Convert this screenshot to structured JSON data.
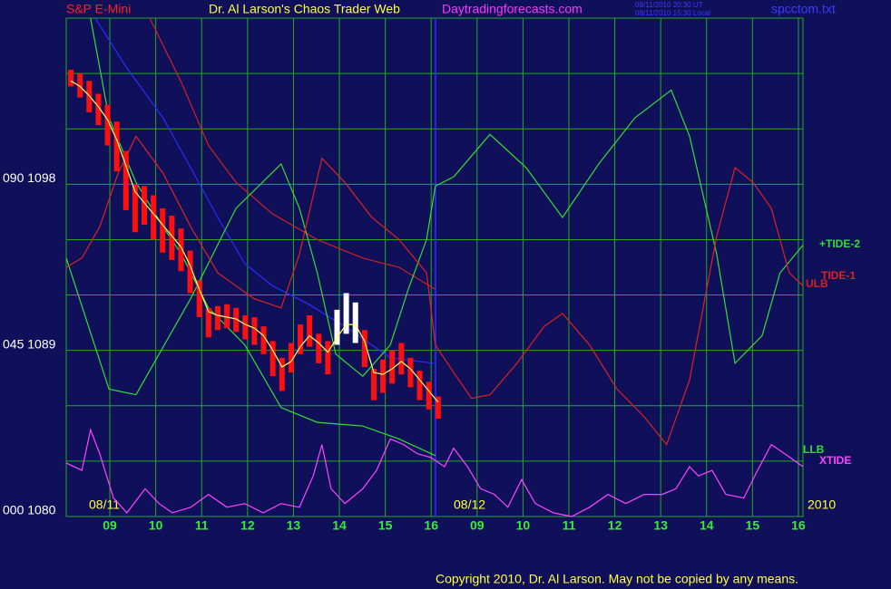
{
  "chart_data": {
    "type": "line",
    "title": "S&P E-Mini",
    "subtitle": "Dr. Al Larson's Chaos Trader Web",
    "site": "Daytradingforecasts.com",
    "timestamps": [
      "08/11/2010 20:30 UT",
      "08/11/2010 15:30 Local"
    ],
    "file": "spcctom.txt",
    "date_labels": [
      "08/11",
      "08/12",
      "2010"
    ],
    "copyright": "Copyright 2010, Dr. Al Larson. May not be copied by any means.",
    "xlim": [
      0.05,
      16.1
    ],
    "xticks": [
      {
        "value": 1,
        "label": "09"
      },
      {
        "value": 2,
        "label": "10"
      },
      {
        "value": 3,
        "label": "11"
      },
      {
        "value": 4,
        "label": "12"
      },
      {
        "value": 5,
        "label": "13"
      },
      {
        "value": 6,
        "label": "14"
      },
      {
        "value": 7,
        "label": "15"
      },
      {
        "value": 8,
        "label": "16"
      },
      {
        "value": 9,
        "label": "09"
      },
      {
        "value": 10,
        "label": "10"
      },
      {
        "value": 11,
        "label": "11"
      },
      {
        "value": 12,
        "label": "12"
      },
      {
        "value": 13,
        "label": "13"
      },
      {
        "value": 14,
        "label": "14"
      },
      {
        "value": 15,
        "label": "15"
      },
      {
        "value": 16,
        "label": "16"
      }
    ],
    "ylim": [
      1080,
      1107
    ],
    "yticks": [
      {
        "value": 1080,
        "label": "000 1080"
      },
      {
        "value": 1089,
        "label": "045 1089"
      },
      {
        "value": 1098,
        "label": "090 1098"
      }
    ],
    "ygrid": [
      1080,
      1083,
      1086,
      1089,
      1092,
      1095,
      1098,
      1101,
      1104,
      1107
    ],
    "grid": true,
    "series": [
      {
        "type": "range",
        "x": [
          0.15,
          0.35,
          0.55,
          0.75,
          0.95,
          1.15,
          1.35,
          1.55,
          1.75,
          1.95,
          2.15,
          2.35,
          2.55,
          2.75,
          2.95,
          3.15,
          3.35,
          3.55,
          3.75,
          3.95,
          4.15,
          4.35,
          4.55,
          4.75,
          4.95,
          5.15,
          5.35,
          5.55,
          5.75,
          5.95,
          6.15,
          6.35,
          6.55,
          6.75,
          6.95,
          7.15,
          7.35,
          7.55,
          7.75,
          7.95,
          8.15
        ],
        "high": [
          1104.2,
          1104.0,
          1103.6,
          1102.9,
          1102.3,
          1101.4,
          1099.8,
          1098.0,
          1097.9,
          1097.4,
          1096.7,
          1096.3,
          1095.6,
          1094.4,
          1092.8,
          1091.3,
          1091.4,
          1091.5,
          1091.3,
          1090.9,
          1090.8,
          1090.3,
          1089.5,
          1088.6,
          1089.4,
          1090.4,
          1090.9,
          1089.9,
          1089.5,
          1091.2,
          1092.1,
          1091.6,
          1090.1,
          1088.0,
          1088.5,
          1089.0,
          1089.4,
          1088.6,
          1087.9,
          1087.3,
          1086.5
        ],
        "low": [
          1103.3,
          1102.7,
          1101.9,
          1101.2,
          1100.1,
          1098.7,
          1096.6,
          1095.4,
          1095.8,
          1095.0,
          1094.3,
          1093.9,
          1093.3,
          1092.1,
          1090.8,
          1089.7,
          1090.1,
          1090.2,
          1090.0,
          1089.6,
          1089.3,
          1088.8,
          1087.6,
          1086.8,
          1087.8,
          1088.8,
          1089.2,
          1088.3,
          1087.7,
          1089.3,
          1089.9,
          1089.4,
          1088.1,
          1086.3,
          1086.7,
          1087.2,
          1087.7,
          1087.0,
          1086.3,
          1085.8,
          1085.3
        ],
        "colors": [
          "#ff1010",
          "#ff1010",
          "#ff1010",
          "#ff1010",
          "#ff1010",
          "#ff1010",
          "#ff1010",
          "#ff1010",
          "#ff1010",
          "#ff1010",
          "#ff1010",
          "#ff1010",
          "#ff1010",
          "#ff1010",
          "#ff1010",
          "#ff1010",
          "#ff1010",
          "#ff1010",
          "#ff1010",
          "#ff1010",
          "#ff1010",
          "#ff1010",
          "#ff1010",
          "#ff1010",
          "#ff1010",
          "#ff1010",
          "#ff1010",
          "#ff1010",
          "#ff1010",
          "#ffffff",
          "#ffffff",
          "#ffffff",
          "#ff1010",
          "#ff1010",
          "#ff1010",
          "#ff1010",
          "#ff1010",
          "#ff1010",
          "#ff1010",
          "#ff1010",
          "#ff1010"
        ]
      },
      {
        "type": "line",
        "color": "#ffff66",
        "x": [
          0.15,
          0.35,
          0.55,
          0.75,
          0.95,
          1.15,
          1.35,
          1.55,
          1.75,
          1.95,
          2.15,
          2.35,
          2.55,
          2.75,
          2.95,
          3.15,
          3.35,
          3.55,
          3.75,
          3.95,
          4.15,
          4.35,
          4.55,
          4.75,
          4.95,
          5.15,
          5.35,
          5.55,
          5.75,
          5.95,
          6.15,
          6.35,
          6.55,
          6.75,
          6.95,
          7.15,
          7.35,
          7.55,
          7.75,
          7.95,
          8.15
        ],
        "values": [
          1103.6,
          1103.3,
          1102.8,
          1102.2,
          1101.5,
          1100.4,
          1099.0,
          1097.6,
          1097.0,
          1096.4,
          1095.8,
          1095.2,
          1094.6,
          1093.6,
          1092.3,
          1091.1,
          1090.9,
          1090.8,
          1090.7,
          1090.4,
          1090.2,
          1089.8,
          1089.0,
          1088.1,
          1088.4,
          1089.2,
          1089.8,
          1089.4,
          1088.9,
          1089.7,
          1090.4,
          1090.4,
          1089.5,
          1087.8,
          1087.7,
          1088.0,
          1088.4,
          1088.0,
          1087.4,
          1086.8,
          1086.2
        ]
      },
      {
        "type": "line",
        "color": "#2a2aff",
        "x": [
          0.68,
          1.37,
          2.16,
          2.76,
          3.35,
          3.94,
          4.54,
          5.33,
          6.12,
          7.11,
          8.05
        ],
        "values": [
          1107.0,
          1104.3,
          1101.6,
          1098.9,
          1096.2,
          1093.7,
          1092.5,
          1091.5,
          1090.3,
          1088.6,
          1088.3
        ]
      },
      {
        "type": "line",
        "name": "LLB",
        "color": "#33dd33",
        "x": [
          0.58,
          0.98,
          1.57,
          2.16,
          2.56,
          3.15,
          3.94,
          4.73,
          5.52,
          6.51,
          7.3,
          8.09
        ],
        "values": [
          1107.0,
          1101.6,
          1098.1,
          1095.7,
          1094.2,
          1091.3,
          1089.3,
          1085.9,
          1085.1,
          1084.9,
          1084.2,
          1083.3
        ]
      },
      {
        "type": "line",
        "name": "ULB",
        "color": "#cc2222",
        "x": [
          1.87,
          2.56,
          3.15,
          3.75,
          4.54,
          5.52,
          6.51,
          7.3,
          8.09
        ],
        "values": [
          1107.0,
          1103.5,
          1100.1,
          1098.1,
          1096.4,
          1095.0,
          1094.0,
          1093.5,
          1092.3
        ]
      },
      {
        "type": "line",
        "name": "+TIDE-2",
        "color": "#33dd33",
        "x": [
          0.05,
          0.98,
          1.57,
          2.76,
          3.75,
          4.73,
          5.13,
          5.52,
          5.92,
          6.51,
          7.11,
          7.5,
          7.9,
          8.09,
          8.49,
          9.28,
          10.07,
          10.86,
          11.65,
          12.44,
          13.23,
          13.63,
          14.22,
          14.62,
          15.21,
          15.6,
          16.1
        ],
        "values": [
          1094.0,
          1086.9,
          1086.6,
          1091.8,
          1096.7,
          1099.1,
          1096.7,
          1093.2,
          1088.8,
          1087.6,
          1089.3,
          1092.3,
          1095.0,
          1097.9,
          1098.4,
          1100.7,
          1098.9,
          1096.2,
          1099.1,
          1101.6,
          1103.1,
          1100.6,
          1094.2,
          1088.3,
          1089.8,
          1093.2,
          1094.7
        ]
      },
      {
        "type": "line",
        "name": "TIDE-1",
        "color": "#dd2222",
        "x": [
          0.05,
          0.39,
          0.78,
          1.18,
          1.57,
          2.16,
          2.76,
          3.35,
          4.14,
          4.73,
          5.13,
          5.62,
          6.12,
          6.71,
          7.3,
          7.9,
          8.09,
          8.49,
          8.88,
          9.28,
          9.87,
          10.46,
          10.86,
          11.45,
          12.05,
          12.64,
          13.13,
          13.63,
          14.22,
          14.62,
          15.01,
          15.41,
          15.8,
          16.1
        ],
        "values": [
          1093.5,
          1094.0,
          1095.7,
          1098.6,
          1100.6,
          1098.6,
          1095.7,
          1093.2,
          1091.8,
          1091.3,
          1094.2,
          1099.4,
          1098.1,
          1096.2,
          1095.0,
          1093.2,
          1089.3,
          1087.8,
          1086.4,
          1086.6,
          1088.3,
          1090.3,
          1091.0,
          1089.3,
          1086.9,
          1085.4,
          1083.9,
          1087.4,
          1095.2,
          1098.9,
          1098.1,
          1096.7,
          1093.2,
          1092.5
        ]
      },
      {
        "type": "line",
        "name": "XTIDE",
        "color": "#ff44ff",
        "x": [
          0.05,
          0.39,
          0.58,
          0.78,
          1.08,
          1.37,
          1.77,
          2.07,
          2.36,
          2.76,
          3.15,
          3.55,
          3.94,
          4.34,
          4.73,
          5.13,
          5.43,
          5.62,
          5.82,
          6.12,
          6.51,
          6.81,
          7.11,
          7.4,
          7.7,
          7.99,
          8.29,
          8.49,
          8.79,
          9.08,
          9.38,
          9.67,
          9.97,
          10.27,
          10.66,
          11.06,
          11.45,
          11.85,
          12.24,
          12.64,
          13.03,
          13.33,
          13.63,
          13.82,
          14.12,
          14.42,
          14.81,
          15.11,
          15.41,
          15.7,
          16.1
        ],
        "values": [
          1082.9,
          1082.5,
          1084.7,
          1083.4,
          1081.0,
          1080.2,
          1081.5,
          1080.7,
          1080.2,
          1080.5,
          1081.2,
          1080.5,
          1080.7,
          1080.2,
          1080.7,
          1080.5,
          1082.2,
          1083.9,
          1081.5,
          1080.7,
          1081.5,
          1082.5,
          1084.2,
          1083.9,
          1083.4,
          1083.2,
          1082.7,
          1083.7,
          1082.7,
          1081.5,
          1081.2,
          1080.5,
          1082.0,
          1080.7,
          1080.2,
          1080.0,
          1080.5,
          1081.2,
          1080.7,
          1081.2,
          1081.2,
          1081.5,
          1082.7,
          1082.2,
          1082.5,
          1081.2,
          1081.0,
          1082.5,
          1083.9,
          1083.4,
          1082.7
        ]
      }
    ]
  }
}
